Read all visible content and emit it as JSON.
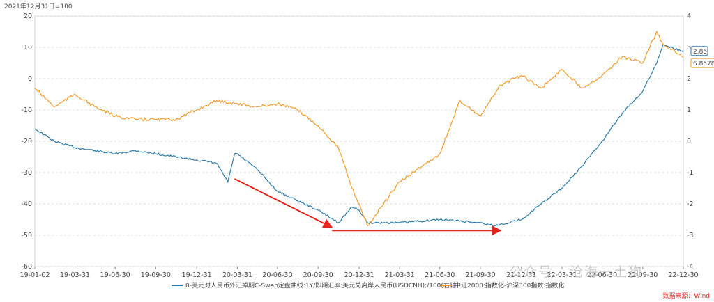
{
  "chart_data": {
    "type": "line",
    "index_note": "2021年12月31日=100",
    "x_ticks": [
      "19-01-02",
      "19-03-31",
      "19-06-30",
      "19-09-30",
      "19-12-31",
      "20-03-31",
      "20-06-30",
      "20-09-30",
      "20-12-31",
      "21-03-31",
      "21-06-30",
      "21-09-30",
      "21-12-31",
      "22-03-31",
      "22-06-30",
      "22-09-30",
      "22-12-30"
    ],
    "y_left": {
      "min": -60,
      "max": 20,
      "ticks": [
        20,
        10,
        0,
        -10,
        -20,
        -30,
        -40,
        -50,
        -60
      ]
    },
    "y_right": {
      "min": -4,
      "max": 4,
      "ticks": [
        4,
        3,
        2,
        1,
        0,
        -1,
        -2,
        -3,
        -4
      ]
    },
    "series": [
      {
        "name": "0-美元对人民币外汇掉期C-Swap定盘曲线:1Y/即期汇率:美元兑离岸人民币(USDCNH):/100(右轴)",
        "axis": "right",
        "color": "#2b7aa8",
        "last_label": "2.85",
        "dates": [
          "19-01-02",
          "19-02-15",
          "19-03-31",
          "19-05-15",
          "19-06-30",
          "19-08-15",
          "19-09-30",
          "19-11-15",
          "19-12-31",
          "20-02-15",
          "20-03-10",
          "20-03-25",
          "20-03-31",
          "20-05-15",
          "20-06-30",
          "20-08-15",
          "20-09-30",
          "20-11-15",
          "20-12-15",
          "20-12-31",
          "21-01-20",
          "21-03-31",
          "21-06-30",
          "21-09-30",
          "21-10-31",
          "21-12-31",
          "22-02-15",
          "22-03-31",
          "22-05-15",
          "22-06-30",
          "22-08-15",
          "22-09-30",
          "22-10-31",
          "22-11-15",
          "22-12-30"
        ],
        "values": [
          0.4,
          0.0,
          -0.2,
          -0.3,
          -0.4,
          -0.3,
          -0.4,
          -0.5,
          -0.6,
          -0.7,
          -1.3,
          -0.4,
          -0.4,
          -0.9,
          -1.6,
          -1.9,
          -2.2,
          -2.6,
          -2.1,
          -2.2,
          -2.6,
          -2.6,
          -2.5,
          -2.6,
          -2.7,
          -2.5,
          -2.0,
          -1.5,
          -0.8,
          0.0,
          0.9,
          1.6,
          2.5,
          3.1,
          2.85
        ]
      },
      {
        "name": "中证2000:指数化-沪深300指数:指数化",
        "axis": "left",
        "color": "#f09a2b",
        "last_label": "6.8578",
        "dates": [
          "19-01-02",
          "19-02-15",
          "19-03-31",
          "19-05-15",
          "19-06-30",
          "19-08-15",
          "19-09-30",
          "19-11-15",
          "19-12-31",
          "20-02-15",
          "20-03-31",
          "20-05-15",
          "20-06-30",
          "20-08-15",
          "20-09-30",
          "20-11-15",
          "20-12-15",
          "20-12-31",
          "21-01-20",
          "21-03-31",
          "21-06-30",
          "21-08-15",
          "21-09-30",
          "21-11-15",
          "21-12-31",
          "22-02-15",
          "22-03-31",
          "22-05-15",
          "22-06-30",
          "22-08-15",
          "22-09-30",
          "22-10-31",
          "22-11-15",
          "22-12-30"
        ],
        "values": [
          -3,
          -9,
          -5,
          -9,
          -12,
          -13,
          -13,
          -13,
          -10,
          -7,
          -8,
          -9,
          -8,
          -10,
          -15,
          -22,
          -35,
          -40,
          -47,
          -33,
          -24,
          -7,
          -12,
          -2,
          1,
          -3,
          3,
          -3,
          1,
          7,
          5,
          15,
          11,
          6.8578
        ]
      }
    ],
    "arrows": [
      {
        "from": {
          "x": "20-03-25",
          "y": -1.2
        },
        "to": {
          "x": "20-11-01",
          "y": -2.75
        },
        "axis": "right"
      },
      {
        "from": {
          "x": "20-11-01",
          "y": -2.85
        },
        "to": {
          "x": "21-11-15",
          "y": -2.85
        },
        "axis": "right"
      }
    ],
    "legend_position": "bottom",
    "source": "数据来源：Wind",
    "watermark": "公众号 · 沧海一土狗"
  }
}
